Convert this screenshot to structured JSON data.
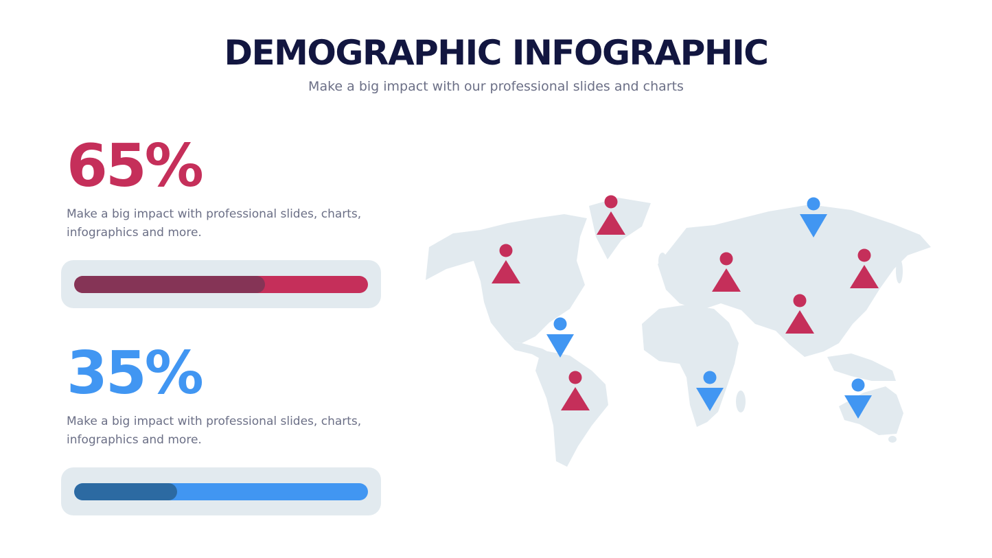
{
  "header": {
    "title": "DEMOGRAPHIC INFOGRAPHIC",
    "subtitle": "Make a big impact with our professional slides and charts"
  },
  "stats": [
    {
      "percent_label": "65%",
      "value": 65,
      "description": "Make a big impact with professional slides, charts, infographics and more.",
      "color": "#c52f5a",
      "fill_color": "#853456",
      "category": "female"
    },
    {
      "percent_label": "35%",
      "value": 35,
      "description": "Make a big impact with professional slides, charts, infographics and more.",
      "color": "#4196f2",
      "fill_color": "#2c6aa2",
      "category": "male"
    }
  ],
  "map": {
    "land_color": "#e2eaef",
    "markers": [
      {
        "region": "north-america",
        "gender": "female"
      },
      {
        "region": "greenland",
        "gender": "female"
      },
      {
        "region": "central-america",
        "gender": "male"
      },
      {
        "region": "south-america",
        "gender": "female"
      },
      {
        "region": "europe",
        "gender": "female"
      },
      {
        "region": "russia",
        "gender": "male"
      },
      {
        "region": "east-asia",
        "gender": "female"
      },
      {
        "region": "south-asia",
        "gender": "female"
      },
      {
        "region": "africa",
        "gender": "male"
      },
      {
        "region": "australia",
        "gender": "male"
      }
    ]
  }
}
